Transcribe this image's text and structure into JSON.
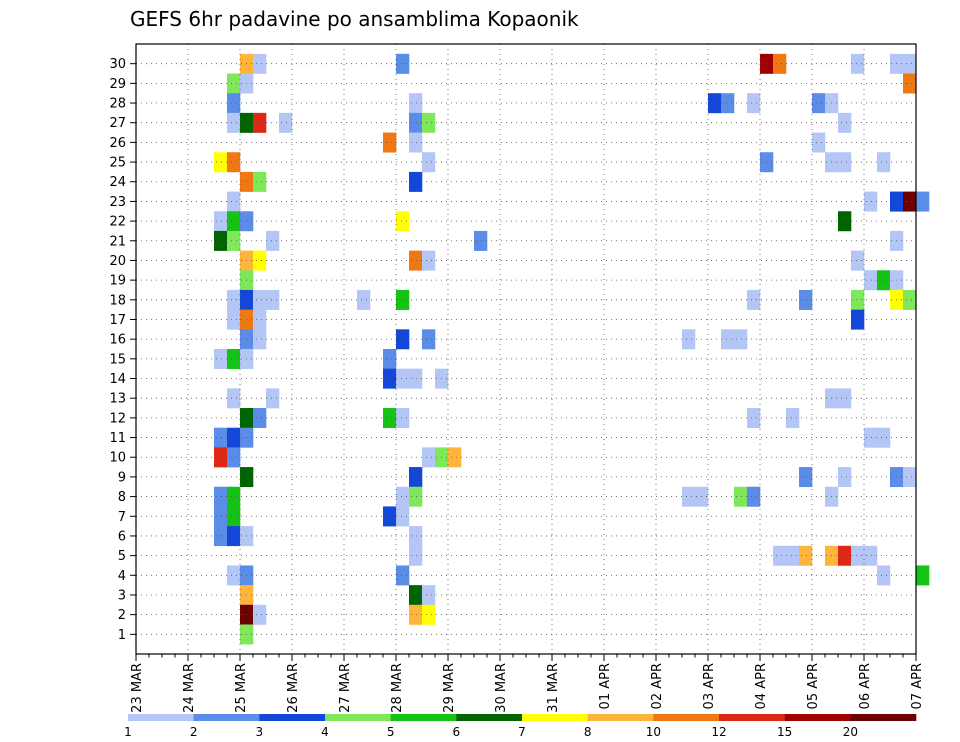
{
  "chart_data": {
    "type": "heatmap",
    "title": "GEFS 6hr padavine po ansamblima Kopaonik",
    "xlabel": "",
    "ylabel": "",
    "y_members": [
      "1",
      "2",
      "3",
      "4",
      "5",
      "6",
      "7",
      "8",
      "9",
      "10",
      "11",
      "12",
      "13",
      "14",
      "15",
      "16",
      "17",
      "18",
      "19",
      "20",
      "21",
      "22",
      "23",
      "24",
      "25",
      "26",
      "27",
      "28",
      "29",
      "30"
    ],
    "x_tick_labels": [
      "23 MAR",
      "24 MAR",
      "25 MAR",
      "26 MAR",
      "27 MAR",
      "28 MAR",
      "29 MAR",
      "30 MAR",
      "31 MAR",
      "01 APR",
      "02 APR",
      "03 APR",
      "04 APR",
      "05 APR",
      "06 APR",
      "07 APR"
    ],
    "x_range_days": [
      0,
      15
    ],
    "steps_per_day": 4,
    "grid": true,
    "legend": "colorbar-bottom",
    "colorbar_labels": [
      "1",
      "2",
      "3",
      "4",
      "5",
      "6",
      "7",
      "8",
      "10",
      "12",
      "15",
      "20"
    ],
    "colorbar_colors": [
      "#b3c6f5",
      "#5a8ce8",
      "#1446d8",
      "#7ee85a",
      "#14c314",
      "#006400",
      "#ffff00",
      "#ffb43c",
      "#f07814",
      "#dc2814",
      "#a00000",
      "#6e0000"
    ],
    "cells": [
      {
        "m": 30,
        "t": 8,
        "c": 7
      },
      {
        "m": 30,
        "t": 9,
        "c": 0
      },
      {
        "m": 30,
        "t": 20,
        "c": 1
      },
      {
        "m": 30,
        "t": 48,
        "c": 10
      },
      {
        "m": 30,
        "t": 49,
        "c": 8
      },
      {
        "m": 30,
        "t": 55,
        "c": 0
      },
      {
        "m": 30,
        "t": 58,
        "c": 0
      },
      {
        "m": 30,
        "t": 59,
        "c": 0
      },
      {
        "m": 29,
        "t": 7,
        "c": 3
      },
      {
        "m": 29,
        "t": 8,
        "c": 0
      },
      {
        "m": 29,
        "t": 59,
        "c": 8
      },
      {
        "m": 28,
        "t": 7,
        "c": 1
      },
      {
        "m": 28,
        "t": 21,
        "c": 0
      },
      {
        "m": 28,
        "t": 44,
        "c": 2
      },
      {
        "m": 28,
        "t": 45,
        "c": 1
      },
      {
        "m": 28,
        "t": 47,
        "c": 0
      },
      {
        "m": 28,
        "t": 52,
        "c": 1
      },
      {
        "m": 28,
        "t": 53,
        "c": 0
      },
      {
        "m": 27,
        "t": 7,
        "c": 0
      },
      {
        "m": 27,
        "t": 8,
        "c": 5
      },
      {
        "m": 27,
        "t": 9,
        "c": 9
      },
      {
        "m": 27,
        "t": 11,
        "c": 0
      },
      {
        "m": 27,
        "t": 21,
        "c": 1
      },
      {
        "m": 27,
        "t": 22,
        "c": 3
      },
      {
        "m": 27,
        "t": 54,
        "c": 0
      },
      {
        "m": 26,
        "t": 19,
        "c": 8
      },
      {
        "m": 26,
        "t": 21,
        "c": 0
      },
      {
        "m": 26,
        "t": 52,
        "c": 0
      },
      {
        "m": 25,
        "t": 6,
        "c": 6
      },
      {
        "m": 25,
        "t": 7,
        "c": 8
      },
      {
        "m": 25,
        "t": 22,
        "c": 0
      },
      {
        "m": 25,
        "t": 48,
        "c": 1
      },
      {
        "m": 25,
        "t": 53,
        "c": 0
      },
      {
        "m": 25,
        "t": 54,
        "c": 0
      },
      {
        "m": 25,
        "t": 57,
        "c": 0
      },
      {
        "m": 24,
        "t": 8,
        "c": 8
      },
      {
        "m": 24,
        "t": 9,
        "c": 3
      },
      {
        "m": 24,
        "t": 21,
        "c": 2
      },
      {
        "m": 23,
        "t": 7,
        "c": 0
      },
      {
        "m": 23,
        "t": 56,
        "c": 0
      },
      {
        "m": 23,
        "t": 58,
        "c": 2
      },
      {
        "m": 23,
        "t": 59,
        "c": 11
      },
      {
        "m": 23,
        "t": 60,
        "c": 1
      },
      {
        "m": 22,
        "t": 6,
        "c": 0
      },
      {
        "m": 22,
        "t": 7,
        "c": 4
      },
      {
        "m": 22,
        "t": 8,
        "c": 1
      },
      {
        "m": 22,
        "t": 20,
        "c": 6
      },
      {
        "m": 22,
        "t": 54,
        "c": 5
      },
      {
        "m": 21,
        "t": 6,
        "c": 5
      },
      {
        "m": 21,
        "t": 7,
        "c": 3
      },
      {
        "m": 21,
        "t": 10,
        "c": 0
      },
      {
        "m": 21,
        "t": 26,
        "c": 1
      },
      {
        "m": 21,
        "t": 58,
        "c": 0
      },
      {
        "m": 20,
        "t": 8,
        "c": 7
      },
      {
        "m": 20,
        "t": 9,
        "c": 6
      },
      {
        "m": 20,
        "t": 21,
        "c": 8
      },
      {
        "m": 20,
        "t": 22,
        "c": 0
      },
      {
        "m": 20,
        "t": 55,
        "c": 0
      },
      {
        "m": 19,
        "t": 8,
        "c": 3
      },
      {
        "m": 19,
        "t": 56,
        "c": 0
      },
      {
        "m": 19,
        "t": 57,
        "c": 4
      },
      {
        "m": 19,
        "t": 58,
        "c": 0
      },
      {
        "m": 18,
        "t": 7,
        "c": 0
      },
      {
        "m": 18,
        "t": 8,
        "c": 2
      },
      {
        "m": 18,
        "t": 9,
        "c": 0
      },
      {
        "m": 18,
        "t": 10,
        "c": 0
      },
      {
        "m": 18,
        "t": 17,
        "c": 0
      },
      {
        "m": 18,
        "t": 20,
        "c": 4
      },
      {
        "m": 18,
        "t": 47,
        "c": 0
      },
      {
        "m": 18,
        "t": 51,
        "c": 1
      },
      {
        "m": 18,
        "t": 55,
        "c": 3
      },
      {
        "m": 18,
        "t": 58,
        "c": 6
      },
      {
        "m": 18,
        "t": 59,
        "c": 3
      },
      {
        "m": 17,
        "t": 7,
        "c": 0
      },
      {
        "m": 17,
        "t": 8,
        "c": 8
      },
      {
        "m": 17,
        "t": 9,
        "c": 0
      },
      {
        "m": 17,
        "t": 55,
        "c": 2
      },
      {
        "m": 16,
        "t": 8,
        "c": 1
      },
      {
        "m": 16,
        "t": 9,
        "c": 0
      },
      {
        "m": 16,
        "t": 20,
        "c": 2
      },
      {
        "m": 16,
        "t": 22,
        "c": 1
      },
      {
        "m": 16,
        "t": 42,
        "c": 0
      },
      {
        "m": 16,
        "t": 45,
        "c": 0
      },
      {
        "m": 16,
        "t": 46,
        "c": 0
      },
      {
        "m": 15,
        "t": 6,
        "c": 0
      },
      {
        "m": 15,
        "t": 7,
        "c": 4
      },
      {
        "m": 15,
        "t": 8,
        "c": 0
      },
      {
        "m": 15,
        "t": 19,
        "c": 1
      },
      {
        "m": 14,
        "t": 19,
        "c": 2
      },
      {
        "m": 14,
        "t": 20,
        "c": 0
      },
      {
        "m": 14,
        "t": 21,
        "c": 0
      },
      {
        "m": 14,
        "t": 23,
        "c": 0
      },
      {
        "m": 13,
        "t": 7,
        "c": 0
      },
      {
        "m": 13,
        "t": 10,
        "c": 0
      },
      {
        "m": 13,
        "t": 53,
        "c": 0
      },
      {
        "m": 13,
        "t": 54,
        "c": 0
      },
      {
        "m": 12,
        "t": 8,
        "c": 5
      },
      {
        "m": 12,
        "t": 9,
        "c": 1
      },
      {
        "m": 12,
        "t": 19,
        "c": 4
      },
      {
        "m": 12,
        "t": 20,
        "c": 0
      },
      {
        "m": 12,
        "t": 47,
        "c": 0
      },
      {
        "m": 12,
        "t": 50,
        "c": 0
      },
      {
        "m": 11,
        "t": 6,
        "c": 1
      },
      {
        "m": 11,
        "t": 7,
        "c": 2
      },
      {
        "m": 11,
        "t": 8,
        "c": 1
      },
      {
        "m": 11,
        "t": 56,
        "c": 0
      },
      {
        "m": 11,
        "t": 57,
        "c": 0
      },
      {
        "m": 10,
        "t": 6,
        "c": 9
      },
      {
        "m": 10,
        "t": 7,
        "c": 1
      },
      {
        "m": 10,
        "t": 22,
        "c": 0
      },
      {
        "m": 10,
        "t": 23,
        "c": 3
      },
      {
        "m": 10,
        "t": 24,
        "c": 7
      },
      {
        "m": 9,
        "t": 8,
        "c": 5
      },
      {
        "m": 9,
        "t": 21,
        "c": 2
      },
      {
        "m": 9,
        "t": 51,
        "c": 1
      },
      {
        "m": 9,
        "t": 54,
        "c": 0
      },
      {
        "m": 9,
        "t": 58,
        "c": 1
      },
      {
        "m": 9,
        "t": 59,
        "c": 0
      },
      {
        "m": 8,
        "t": 6,
        "c": 1
      },
      {
        "m": 8,
        "t": 7,
        "c": 4
      },
      {
        "m": 8,
        "t": 20,
        "c": 0
      },
      {
        "m": 8,
        "t": 21,
        "c": 3
      },
      {
        "m": 8,
        "t": 42,
        "c": 0
      },
      {
        "m": 8,
        "t": 43,
        "c": 0
      },
      {
        "m": 8,
        "t": 46,
        "c": 3
      },
      {
        "m": 8,
        "t": 47,
        "c": 1
      },
      {
        "m": 8,
        "t": 53,
        "c": 0
      },
      {
        "m": 7,
        "t": 6,
        "c": 1
      },
      {
        "m": 7,
        "t": 7,
        "c": 4
      },
      {
        "m": 7,
        "t": 19,
        "c": 2
      },
      {
        "m": 7,
        "t": 20,
        "c": 0
      },
      {
        "m": 6,
        "t": 6,
        "c": 1
      },
      {
        "m": 6,
        "t": 7,
        "c": 2
      },
      {
        "m": 6,
        "t": 8,
        "c": 0
      },
      {
        "m": 6,
        "t": 21,
        "c": 0
      },
      {
        "m": 5,
        "t": 21,
        "c": 0
      },
      {
        "m": 5,
        "t": 49,
        "c": 0
      },
      {
        "m": 5,
        "t": 50,
        "c": 0
      },
      {
        "m": 5,
        "t": 51,
        "c": 7
      },
      {
        "m": 5,
        "t": 53,
        "c": 7
      },
      {
        "m": 5,
        "t": 54,
        "c": 9
      },
      {
        "m": 5,
        "t": 55,
        "c": 0
      },
      {
        "m": 5,
        "t": 56,
        "c": 0
      },
      {
        "m": 4,
        "t": 7,
        "c": 0
      },
      {
        "m": 4,
        "t": 8,
        "c": 1
      },
      {
        "m": 4,
        "t": 20,
        "c": 1
      },
      {
        "m": 4,
        "t": 57,
        "c": 0
      },
      {
        "m": 4,
        "t": 60,
        "c": 4
      },
      {
        "m": 3,
        "t": 8,
        "c": 7
      },
      {
        "m": 3,
        "t": 21,
        "c": 5
      },
      {
        "m": 3,
        "t": 22,
        "c": 0
      },
      {
        "m": 2,
        "t": 8,
        "c": 11
      },
      {
        "m": 2,
        "t": 9,
        "c": 0
      },
      {
        "m": 2,
        "t": 21,
        "c": 7
      },
      {
        "m": 2,
        "t": 22,
        "c": 6
      },
      {
        "m": 1,
        "t": 8,
        "c": 3
      }
    ]
  }
}
